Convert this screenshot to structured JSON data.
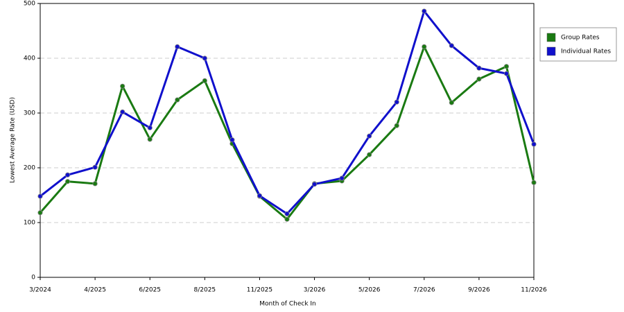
{
  "chart_data": {
    "type": "line",
    "x_label": "Month of Check In",
    "y_label": "Lowest Average Rate (USD)",
    "categories": [
      "3/2024",
      null,
      "4/2025",
      null,
      "6/2025",
      null,
      "8/2025",
      null,
      "11/2025",
      null,
      "3/2026",
      null,
      "5/2026",
      null,
      "7/2026",
      null,
      "9/2026",
      null,
      "11/2026"
    ],
    "series": [
      {
        "name": "Group Rates",
        "color": "#1a7a12",
        "values": [
          118,
          175,
          171,
          349,
          252,
          324,
          359,
          244,
          148,
          106,
          171,
          176,
          224,
          277,
          421,
          319,
          362,
          385,
          173
        ]
      },
      {
        "name": "Individual Rates",
        "color": "#1010cc",
        "values": [
          148,
          187,
          201,
          302,
          273,
          421,
          400,
          251,
          149,
          116,
          170,
          181,
          258,
          320,
          486,
          423,
          382,
          372,
          243
        ]
      }
    ],
    "ylim": [
      0,
      500
    ],
    "yticks": [
      0,
      100,
      200,
      300,
      400,
      500
    ],
    "grid": true,
    "legend": "right"
  }
}
